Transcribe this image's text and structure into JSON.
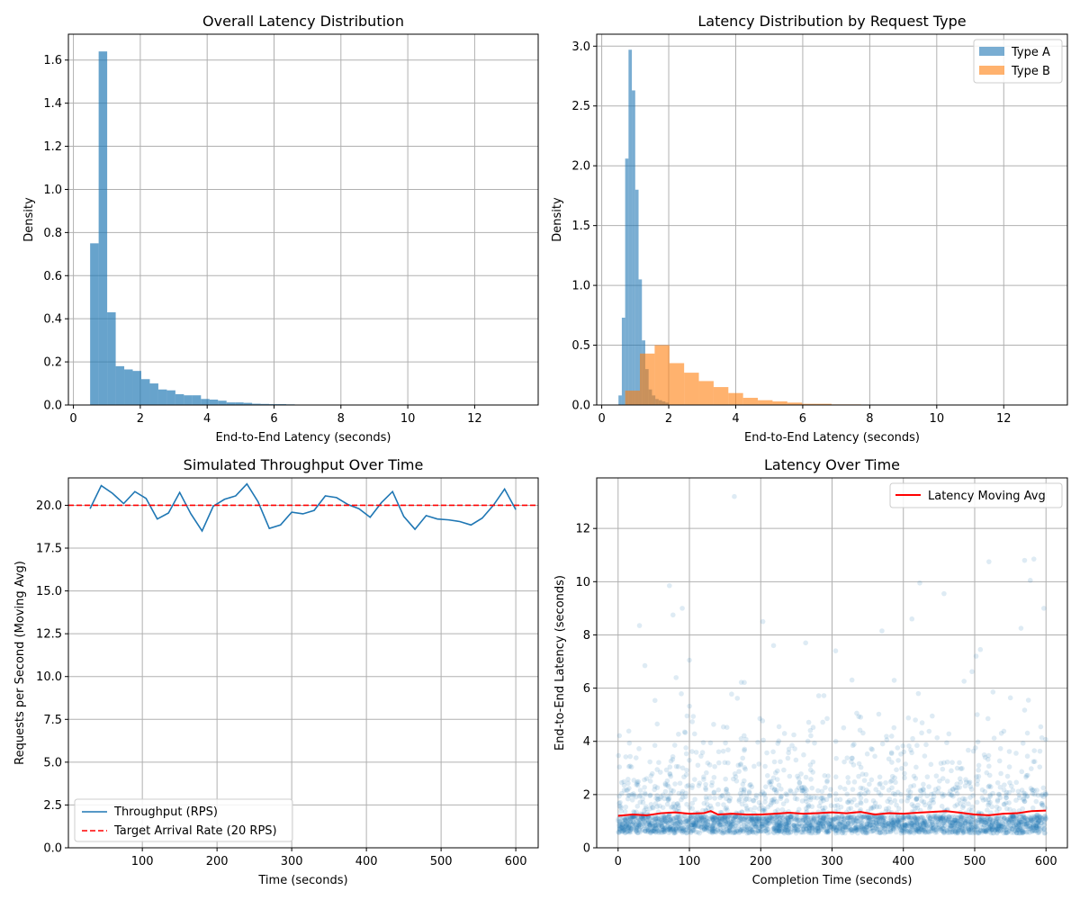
{
  "colors": {
    "type_a": "#1f77b4",
    "type_b": "#ff7f0e",
    "target_line": "#ff0000",
    "moving_avg": "#ff0000",
    "scatter": "#1f77b4",
    "grid": "#b0b0b0"
  },
  "chart_data": [
    {
      "id": "overall",
      "type": "bar",
      "subtype": "histogram",
      "title": "Overall Latency Distribution",
      "xlabel": "End-to-End Latency (seconds)",
      "ylabel": "Density",
      "xlim": [
        -0.15,
        13.9
      ],
      "ylim": [
        0,
        1.72
      ],
      "xticks": [
        0,
        2,
        4,
        6,
        8,
        10,
        12
      ],
      "yticks": [
        0.0,
        0.2,
        0.4,
        0.6,
        0.8,
        1.0,
        1.2,
        1.4,
        1.6
      ],
      "grid": true,
      "color": "#1f77b4",
      "alpha": 0.68,
      "bin_start": 0.5,
      "bin_width": 0.255,
      "values": [
        0.75,
        1.64,
        0.43,
        0.18,
        0.165,
        0.158,
        0.12,
        0.1,
        0.072,
        0.068,
        0.05,
        0.045,
        0.045,
        0.028,
        0.025,
        0.02,
        0.012,
        0.012,
        0.01,
        0.006,
        0.005,
        0.004,
        0.004,
        0.003,
        0.002,
        0.002,
        0.001,
        0.001,
        0.001,
        0.001,
        0.001,
        0.001,
        0.001,
        0.001,
        0.001,
        0.001,
        0.0,
        0.0,
        0.0,
        0.0,
        0.0,
        0.0,
        0.0,
        0.0,
        0.0,
        0.0,
        0.0,
        0.0,
        0.0,
        0.0
      ]
    },
    {
      "id": "by_type",
      "type": "bar",
      "subtype": "histogram",
      "title": "Latency Distribution by Request Type",
      "xlabel": "End-to-End Latency (seconds)",
      "ylabel": "Density",
      "xlim": [
        -0.15,
        13.9
      ],
      "ylim": [
        0,
        3.1
      ],
      "xticks": [
        0,
        2,
        4,
        6,
        8,
        10,
        12
      ],
      "yticks": [
        0.0,
        0.5,
        1.0,
        1.5,
        2.0,
        2.5,
        3.0
      ],
      "grid": true,
      "legend": "top-right",
      "series": [
        {
          "name": "Type A",
          "color": "#1f77b4",
          "alpha": 0.6,
          "bin_start": 0.5,
          "bin_width": 0.1,
          "values": [
            0.08,
            0.73,
            2.06,
            2.97,
            2.63,
            1.8,
            1.05,
            0.54,
            0.3,
            0.13,
            0.08,
            0.05,
            0.04,
            0.03,
            0.02
          ]
        },
        {
          "name": "Type B",
          "color": "#ff7f0e",
          "alpha": 0.6,
          "bin_start": 0.7,
          "bin_width": 0.44,
          "values": [
            0.12,
            0.43,
            0.5,
            0.35,
            0.27,
            0.2,
            0.15,
            0.1,
            0.06,
            0.04,
            0.03,
            0.02,
            0.01,
            0.01,
            0.005,
            0.005,
            0.003,
            0.002,
            0.002,
            0.001
          ]
        }
      ]
    },
    {
      "id": "throughput",
      "type": "line",
      "title": "Simulated Throughput Over Time",
      "xlabel": "Time (seconds)",
      "ylabel": "Requests per Second (Moving Avg)",
      "xlim": [
        1,
        630
      ],
      "ylim": [
        0,
        21.6
      ],
      "xticks": [
        100,
        200,
        300,
        400,
        500,
        600
      ],
      "yticks": [
        0.0,
        2.5,
        5.0,
        7.5,
        10.0,
        12.5,
        15.0,
        17.5,
        20.0
      ],
      "grid": true,
      "legend": "bottom-left",
      "x": [
        30,
        45,
        60,
        75,
        90,
        105,
        120,
        135,
        150,
        165,
        180,
        195,
        210,
        225,
        240,
        255,
        270,
        285,
        300,
        315,
        330,
        345,
        360,
        375,
        390,
        405,
        420,
        435,
        450,
        465,
        480,
        495,
        510,
        525,
        540,
        555,
        570,
        585,
        600
      ],
      "series": [
        {
          "name": "Throughput (RPS)",
          "color": "#1f77b4",
          "style": "solid",
          "values": [
            19.8,
            21.15,
            20.7,
            20.1,
            20.8,
            20.4,
            19.2,
            19.55,
            20.75,
            19.5,
            18.5,
            19.95,
            20.35,
            20.55,
            21.25,
            20.2,
            18.65,
            18.85,
            19.6,
            19.5,
            19.7,
            20.55,
            20.45,
            20.05,
            19.8,
            19.3,
            20.15,
            20.8,
            19.35,
            18.6,
            19.4,
            19.2,
            19.15,
            19.05,
            18.85,
            19.25,
            20.0,
            20.95,
            19.75
          ]
        },
        {
          "name": "Target Arrival Rate (20 RPS)",
          "color": "#ff0000",
          "style": "dashed",
          "constant": 20
        }
      ]
    },
    {
      "id": "latency_time",
      "type": "scatter",
      "title": "Latency Over Time",
      "xlabel": "Completion Time (seconds)",
      "ylabel": "End-to-End Latency (seconds)",
      "xlim": [
        -30,
        630
      ],
      "ylim": [
        0,
        13.9
      ],
      "xticks": [
        0,
        100,
        200,
        300,
        400,
        500,
        600
      ],
      "yticks": [
        0,
        2,
        4,
        6,
        8,
        10,
        12
      ],
      "grid": true,
      "legend": "top-right",
      "series": [
        {
          "name": "Latency Moving Avg",
          "color": "#ff0000",
          "x": [
            0,
            20,
            40,
            60,
            80,
            100,
            120,
            130,
            140,
            160,
            180,
            200,
            220,
            240,
            260,
            280,
            300,
            320,
            340,
            360,
            380,
            400,
            420,
            440,
            460,
            480,
            500,
            520,
            540,
            560,
            580,
            600
          ],
          "values": [
            1.2,
            1.25,
            1.22,
            1.3,
            1.33,
            1.28,
            1.3,
            1.38,
            1.25,
            1.28,
            1.25,
            1.25,
            1.28,
            1.32,
            1.28,
            1.3,
            1.33,
            1.3,
            1.35,
            1.25,
            1.3,
            1.28,
            1.32,
            1.35,
            1.38,
            1.32,
            1.25,
            1.22,
            1.28,
            1.3,
            1.38,
            1.4
          ]
        }
      ],
      "scatter": {
        "color": "#1f77b4",
        "alpha": 0.15,
        "x_range": [
          0,
          600
        ],
        "count": 3200,
        "core_latency_range": [
          0.55,
          1.2
        ],
        "outliers": [
          {
            "x": 163,
            "y": 13.2
          },
          {
            "x": 570,
            "y": 10.8
          },
          {
            "x": 583,
            "y": 10.85
          },
          {
            "x": 520,
            "y": 10.75
          },
          {
            "x": 578,
            "y": 10.05
          },
          {
            "x": 423,
            "y": 9.95
          },
          {
            "x": 72,
            "y": 9.85
          },
          {
            "x": 457,
            "y": 9.55
          },
          {
            "x": 90,
            "y": 9.0
          },
          {
            "x": 597,
            "y": 9.0
          },
          {
            "x": 77,
            "y": 8.75
          },
          {
            "x": 203,
            "y": 8.5
          },
          {
            "x": 412,
            "y": 8.6
          },
          {
            "x": 30,
            "y": 8.35
          },
          {
            "x": 565,
            "y": 8.25
          },
          {
            "x": 370,
            "y": 8.15
          },
          {
            "x": 218,
            "y": 7.6
          },
          {
            "x": 263,
            "y": 7.7
          },
          {
            "x": 305,
            "y": 7.4
          },
          {
            "x": 508,
            "y": 7.45
          },
          {
            "x": 502,
            "y": 7.2
          },
          {
            "x": 100,
            "y": 7.05
          }
        ]
      }
    }
  ]
}
